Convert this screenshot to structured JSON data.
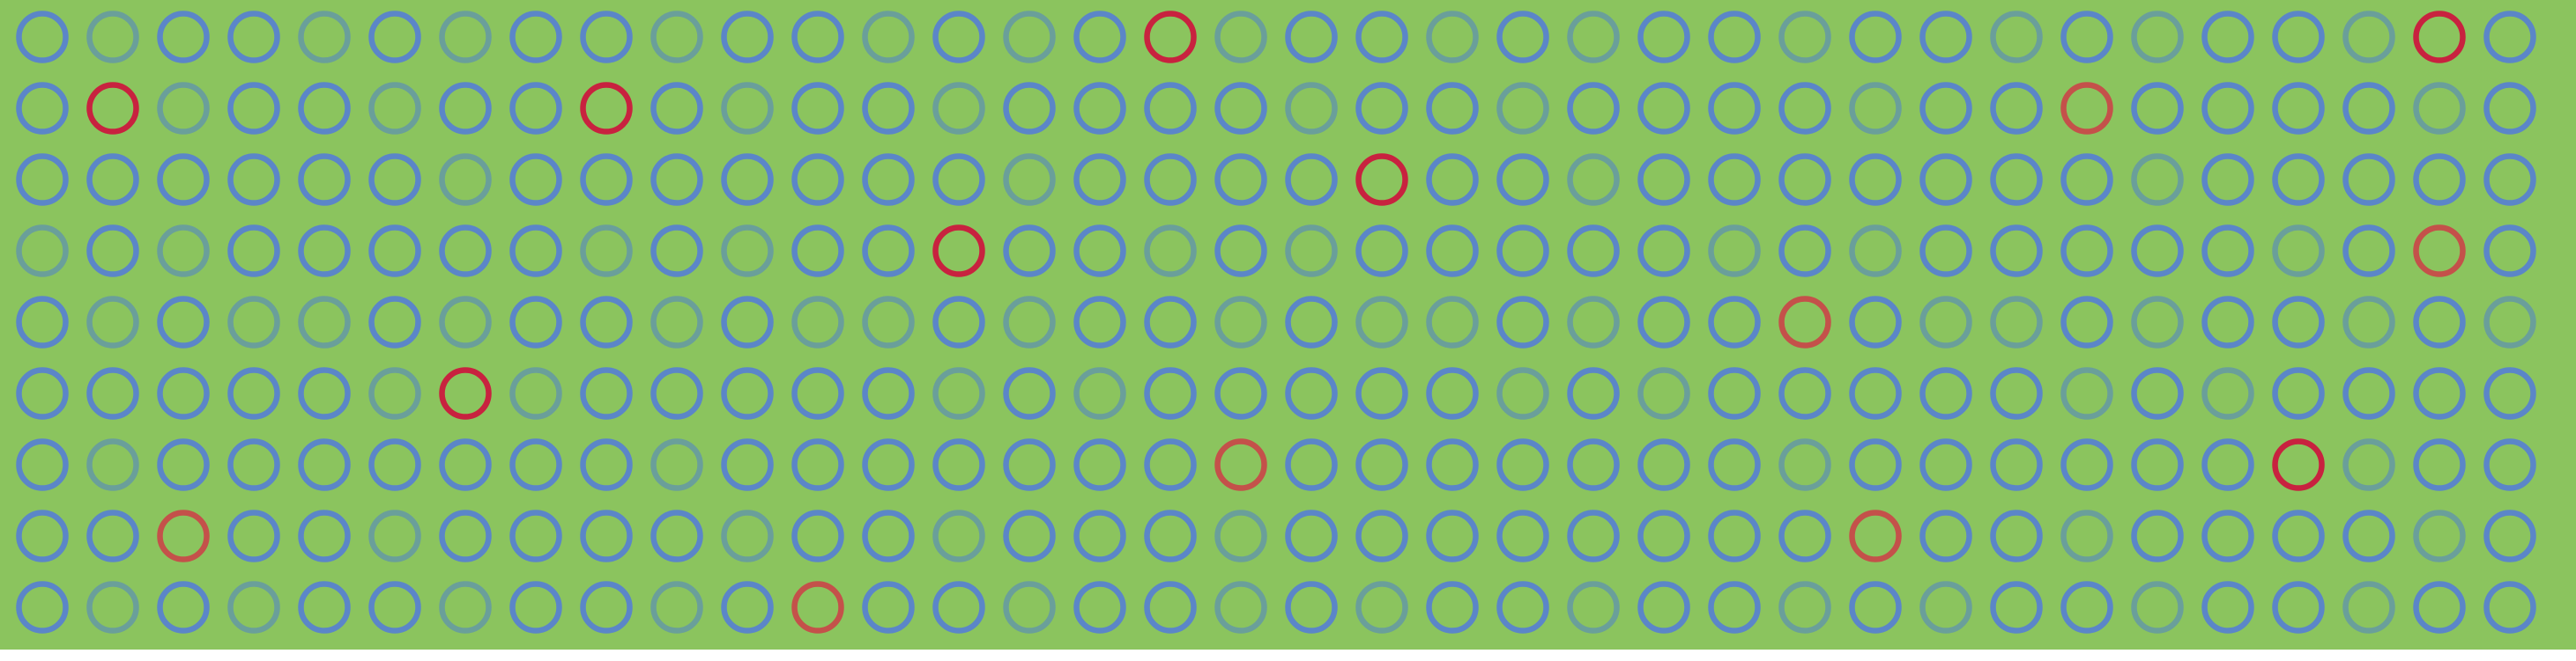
{
  "board": {
    "background_color": "#8bc45e",
    "ring_colors": {
      "blue": "#5b86c8",
      "teal": "#6a9f9a",
      "red": "#c8223f",
      "brick": "#c4514a"
    },
    "grid": [
      [
        "blue",
        "teal",
        "blue",
        "blue",
        "teal",
        "blue",
        "teal",
        "blue",
        "blue",
        "teal",
        "blue",
        "blue",
        "teal",
        "blue",
        "teal",
        "blue",
        "red",
        "teal",
        "blue",
        "blue",
        "teal",
        "blue",
        "teal",
        "blue",
        "blue",
        "teal",
        "blue",
        "blue",
        "teal",
        "blue",
        "teal",
        "blue",
        "blue",
        "teal",
        "red",
        "blue"
      ],
      [
        "blue",
        "red",
        "teal",
        "blue",
        "blue",
        "teal",
        "blue",
        "blue",
        "red",
        "blue",
        "teal",
        "blue",
        "blue",
        "teal",
        "blue",
        "blue",
        "blue",
        "blue",
        "teal",
        "blue",
        "blue",
        "teal",
        "blue",
        "blue",
        "blue",
        "blue",
        "teal",
        "blue",
        "blue",
        "brick",
        "blue",
        "blue",
        "blue",
        "blue",
        "teal",
        "blue"
      ],
      [
        "blue",
        "blue",
        "blue",
        "blue",
        "blue",
        "blue",
        "teal",
        "blue",
        "blue",
        "blue",
        "blue",
        "blue",
        "blue",
        "blue",
        "teal",
        "blue",
        "blue",
        "blue",
        "blue",
        "red",
        "blue",
        "blue",
        "teal",
        "blue",
        "blue",
        "blue",
        "blue",
        "blue",
        "blue",
        "blue",
        "teal",
        "blue",
        "blue",
        "blue",
        "blue",
        "blue"
      ],
      [
        "teal",
        "blue",
        "teal",
        "blue",
        "blue",
        "blue",
        "blue",
        "blue",
        "teal",
        "blue",
        "teal",
        "blue",
        "blue",
        "red",
        "blue",
        "blue",
        "teal",
        "blue",
        "teal",
        "blue",
        "blue",
        "blue",
        "blue",
        "blue",
        "teal",
        "blue",
        "teal",
        "blue",
        "blue",
        "blue",
        "blue",
        "blue",
        "teal",
        "blue",
        "brick",
        "blue"
      ],
      [
        "blue",
        "teal",
        "blue",
        "teal",
        "teal",
        "blue",
        "teal",
        "blue",
        "blue",
        "teal",
        "blue",
        "teal",
        "teal",
        "blue",
        "teal",
        "blue",
        "blue",
        "teal",
        "blue",
        "teal",
        "teal",
        "blue",
        "teal",
        "blue",
        "blue",
        "brick",
        "blue",
        "teal",
        "teal",
        "blue",
        "teal",
        "blue",
        "blue",
        "teal",
        "blue",
        "teal"
      ],
      [
        "blue",
        "blue",
        "blue",
        "blue",
        "blue",
        "teal",
        "red",
        "teal",
        "blue",
        "blue",
        "blue",
        "blue",
        "blue",
        "teal",
        "blue",
        "teal",
        "blue",
        "blue",
        "blue",
        "blue",
        "blue",
        "teal",
        "blue",
        "teal",
        "blue",
        "blue",
        "blue",
        "blue",
        "blue",
        "teal",
        "blue",
        "teal",
        "blue",
        "blue",
        "blue",
        "blue"
      ],
      [
        "blue",
        "teal",
        "blue",
        "blue",
        "blue",
        "blue",
        "blue",
        "blue",
        "blue",
        "teal",
        "blue",
        "blue",
        "blue",
        "blue",
        "blue",
        "blue",
        "blue",
        "brick",
        "blue",
        "blue",
        "blue",
        "blue",
        "blue",
        "blue",
        "blue",
        "teal",
        "blue",
        "blue",
        "blue",
        "blue",
        "blue",
        "blue",
        "red",
        "teal",
        "blue",
        "blue"
      ],
      [
        "blue",
        "blue",
        "brick",
        "blue",
        "blue",
        "teal",
        "blue",
        "blue",
        "blue",
        "blue",
        "teal",
        "blue",
        "blue",
        "teal",
        "blue",
        "blue",
        "blue",
        "teal",
        "blue",
        "blue",
        "blue",
        "blue",
        "blue",
        "blue",
        "blue",
        "blue",
        "brick",
        "blue",
        "blue",
        "teal",
        "blue",
        "blue",
        "blue",
        "blue",
        "teal",
        "blue"
      ],
      [
        "blue",
        "teal",
        "blue",
        "teal",
        "blue",
        "blue",
        "teal",
        "blue",
        "blue",
        "teal",
        "blue",
        "brick",
        "blue",
        "blue",
        "teal",
        "blue",
        "blue",
        "teal",
        "blue",
        "teal",
        "blue",
        "blue",
        "teal",
        "blue",
        "blue",
        "teal",
        "blue",
        "teal",
        "blue",
        "blue",
        "teal",
        "blue",
        "blue",
        "teal",
        "blue",
        "blue"
      ]
    ]
  }
}
